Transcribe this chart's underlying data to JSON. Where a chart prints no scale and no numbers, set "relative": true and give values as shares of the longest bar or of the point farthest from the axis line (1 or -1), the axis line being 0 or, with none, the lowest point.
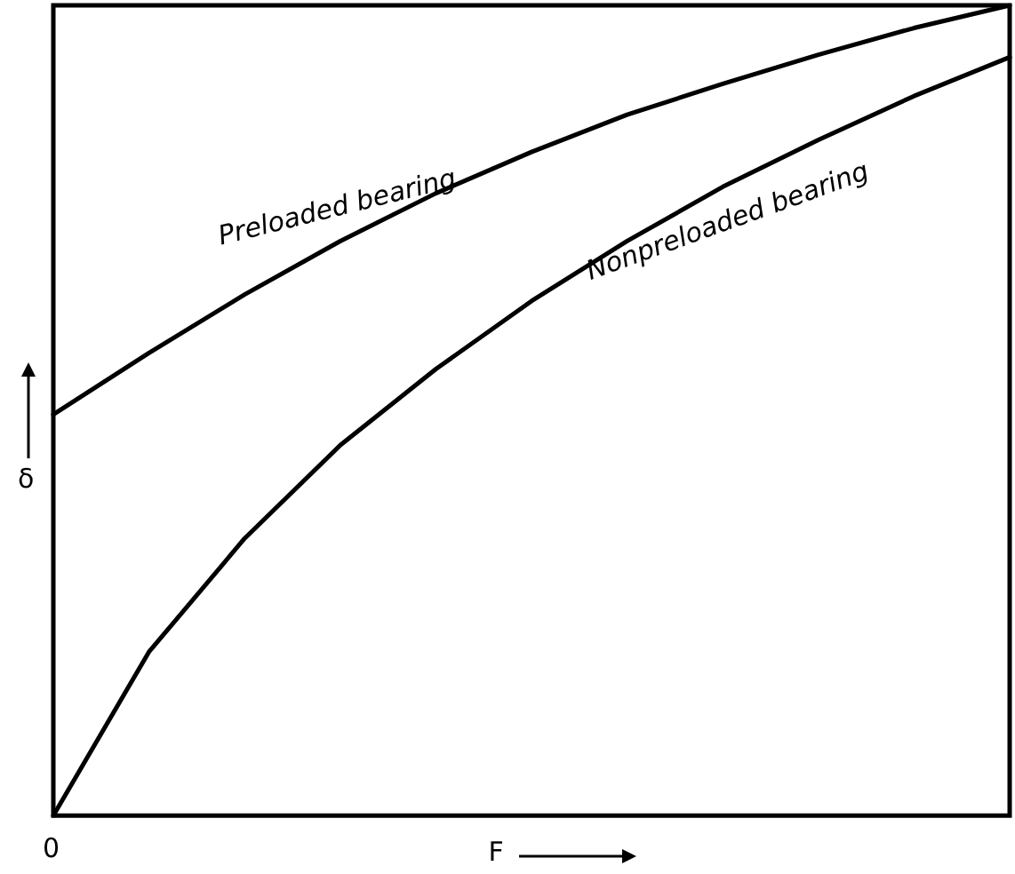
{
  "chart_data": {
    "type": "line",
    "relative": true,
    "xlabel": "F",
    "ylabel": "δ",
    "categories": [
      null,
      null,
      null,
      null,
      null,
      null,
      null,
      null,
      null,
      null,
      null
    ],
    "annotations": [
      "0"
    ],
    "series": [
      {
        "name": "Preloaded bearing",
        "color": "#000000",
        "values": [
          0.495,
          0.571,
          0.643,
          0.709,
          0.768,
          0.819,
          0.865,
          0.903,
          0.939,
          0.972,
          1
        ]
      },
      {
        "name": "Nonpreloaded bearing",
        "color": "#000000",
        "values": [
          0,
          0.202,
          0.342,
          0.457,
          0.551,
          0.635,
          0.709,
          0.776,
          0.834,
          0.888,
          0.936
        ]
      }
    ],
    "legend": false,
    "grid": false,
    "marker": "none",
    "line_style": "solid"
  }
}
